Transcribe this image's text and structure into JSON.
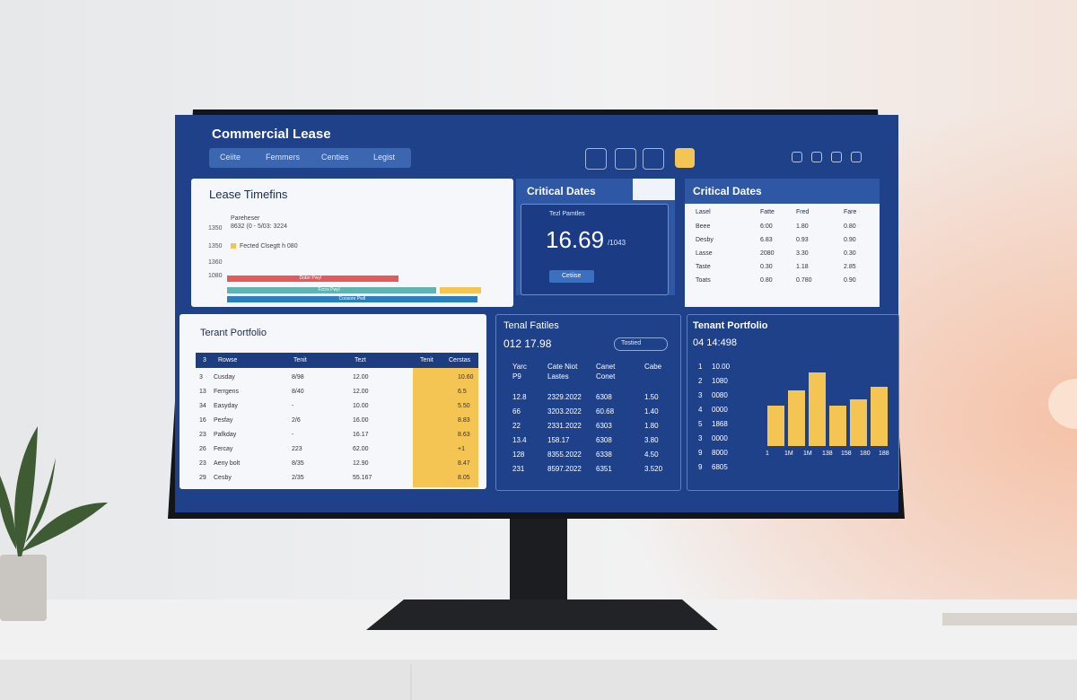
{
  "header": {
    "title": "Commercial Lease",
    "nav": [
      "Ceiite",
      "Femmers",
      "Centies",
      "Legist"
    ]
  },
  "lease_timeline": {
    "title": "Lease Timefins",
    "axis_labels": [
      "1350",
      "1350",
      "1360",
      "1080"
    ],
    "notes": [
      "Pareheser",
      "8632 (0 - 5/03: 3224",
      "Fected Clsegtt h 080"
    ],
    "bar_labels": [
      "Dobrr Pwyl",
      "Fccrs Pwyl",
      "Coosore Pwtl"
    ]
  },
  "critical_dates": {
    "title": "Critical Dates",
    "label": "Tezl Pamtles",
    "value": "16.69",
    "unit": "/1043",
    "button": "Cetiise"
  },
  "critical_table": {
    "title": "Critical Dates",
    "columns": [
      "Lasel",
      "Fatte",
      "Fred",
      "Fare"
    ],
    "rows": [
      [
        "Beee",
        "6:00",
        "1.80",
        "0.80"
      ],
      [
        "Desby",
        "6.83",
        "0.93",
        "0.90"
      ],
      [
        "Lasse",
        "2080",
        "3.30",
        "0.30"
      ],
      [
        "Taste",
        "0.30",
        "1.18",
        "2.85"
      ],
      [
        "Toats",
        "0.80",
        "0.780",
        "0.90"
      ]
    ]
  },
  "portfolio_table": {
    "title": "Terant Portfolio",
    "columns": [
      "3",
      "Rowse",
      "Tenit",
      "Tezt",
      "Tenit",
      "Cerstas"
    ],
    "rows": [
      [
        "3",
        "Cusday",
        "8/98",
        "12.00",
        "10.60"
      ],
      [
        "13",
        "Ferrgens",
        "8/40",
        "12.00",
        "6.5"
      ],
      [
        "34",
        "Easyday",
        "-",
        "10.00",
        "5.50"
      ],
      [
        "16",
        "Pesfay",
        "2/6",
        "16.00",
        "8.83"
      ],
      [
        "23",
        "Pafkday",
        "-",
        "16.17",
        "8.63"
      ],
      [
        "26",
        "Fercay",
        "223",
        "62.00",
        "+1"
      ],
      [
        "23",
        "Aeny bolt",
        "8/35",
        "12.90",
        "8.47"
      ],
      [
        "29",
        "Cesby",
        "2/35",
        "55.167",
        "8.05"
      ]
    ]
  },
  "fatiles": {
    "title": "Tenal Fatiles",
    "value": "012 17.98",
    "button": "Tostied",
    "columns": [
      "Yarc",
      "Cate Niot",
      "Canet",
      "Cabe"
    ],
    "subcolumns": [
      "P9",
      "Lastes",
      "Conet"
    ],
    "rows": [
      [
        "12.8",
        "2329.2022",
        "6308",
        "1.50"
      ],
      [
        "66",
        "3203.2022",
        "60.68",
        "1.40"
      ],
      [
        "22",
        "2331.2022",
        "6303",
        "1.80"
      ],
      [
        "13.4",
        "158.17",
        "6308",
        "3.80"
      ],
      [
        "128",
        "8355.2022",
        "6338",
        "4.50"
      ],
      [
        "231",
        "8597.2022",
        "6351",
        "3.520"
      ]
    ]
  },
  "chart": {
    "title": "Tenant Portfolio",
    "value": "04 14:498",
    "row_labels": [
      [
        "1",
        "10.00"
      ],
      [
        "2",
        "1080"
      ],
      [
        "3",
        "0080"
      ],
      [
        "4",
        "0000"
      ],
      [
        "5",
        "1868"
      ],
      [
        "3",
        "0000"
      ],
      [
        "9",
        "8000"
      ],
      [
        "9",
        "6805"
      ]
    ],
    "x_labels": [
      "1",
      "1M",
      "1M",
      "138",
      "158",
      "180",
      "188"
    ],
    "values": [
      45,
      62,
      82,
      45,
      52,
      66
    ],
    "color": "#f4c552"
  }
}
